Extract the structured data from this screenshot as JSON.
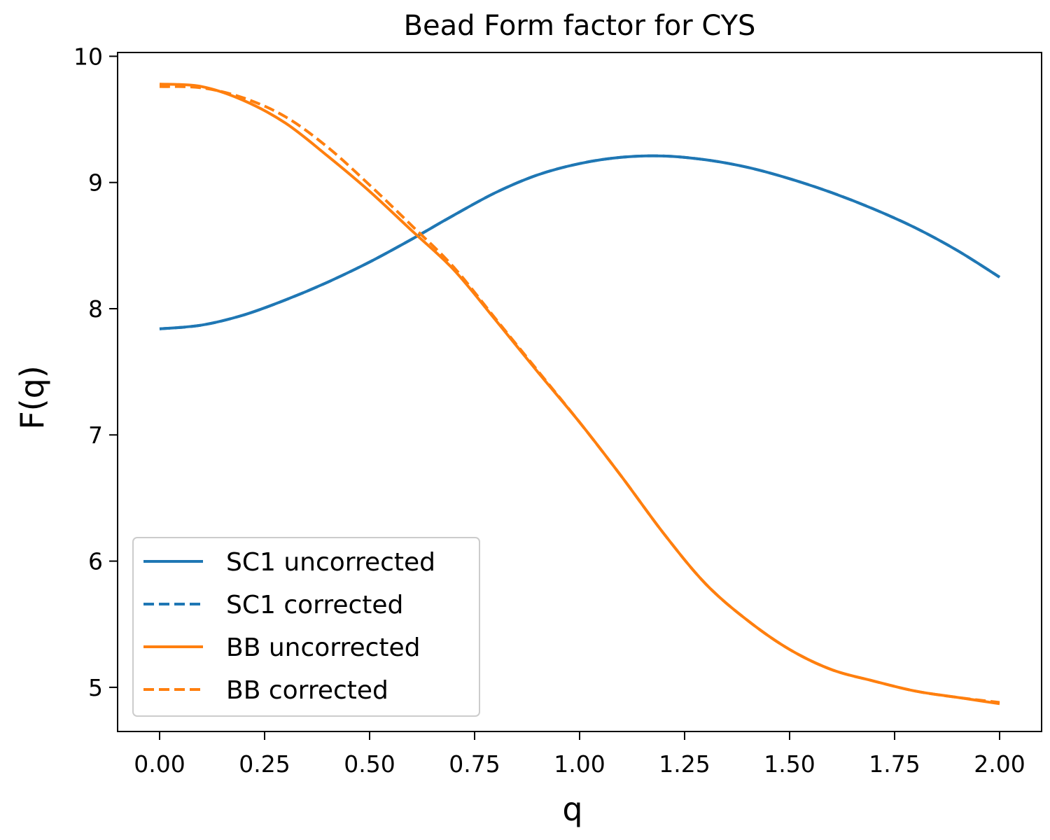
{
  "chart_data": {
    "type": "line",
    "title": "Bead Form factor for CYS",
    "xlabel": "q",
    "ylabel": "F(q)",
    "xlim": [
      -0.1,
      2.1
    ],
    "ylim": [
      4.65,
      10.03
    ],
    "xticks": [
      "0.00",
      "0.25",
      "0.50",
      "0.75",
      "1.00",
      "1.25",
      "1.50",
      "1.75",
      "2.00"
    ],
    "xtick_values": [
      0,
      0.25,
      0.5,
      0.75,
      1.0,
      1.25,
      1.5,
      1.75,
      2.0
    ],
    "yticks": [
      "5",
      "6",
      "7",
      "8",
      "9",
      "10"
    ],
    "ytick_values": [
      5,
      6,
      7,
      8,
      9,
      10
    ],
    "grid": false,
    "legend_position": "lower-left",
    "x": [
      0,
      0.1,
      0.2,
      0.3,
      0.4,
      0.5,
      0.6,
      0.7,
      0.8,
      0.9,
      1.0,
      1.1,
      1.2,
      1.3,
      1.4,
      1.5,
      1.6,
      1.7,
      1.8,
      1.9,
      2.0
    ],
    "series": [
      {
        "name": "SC1 uncorrected",
        "color": "#1f77b4",
        "dash": "solid",
        "values": [
          7.84,
          7.87,
          7.95,
          8.07,
          8.21,
          8.37,
          8.55,
          8.74,
          8.92,
          9.06,
          9.15,
          9.2,
          9.21,
          9.18,
          9.12,
          9.03,
          8.92,
          8.79,
          8.64,
          8.46,
          8.25
        ]
      },
      {
        "name": "SC1 corrected",
        "color": "#1f77b4",
        "dash": "dashed",
        "values": [
          7.84,
          7.87,
          7.95,
          8.07,
          8.21,
          8.37,
          8.55,
          8.74,
          8.92,
          9.06,
          9.15,
          9.2,
          9.21,
          9.18,
          9.12,
          9.03,
          8.92,
          8.79,
          8.64,
          8.46,
          8.25
        ]
      },
      {
        "name": "BB uncorrected",
        "color": "#ff7f0e",
        "dash": "solid",
        "values": [
          9.78,
          9.76,
          9.65,
          9.47,
          9.21,
          8.93,
          8.62,
          8.31,
          7.91,
          7.5,
          7.1,
          6.67,
          6.22,
          5.82,
          5.53,
          5.3,
          5.14,
          5.05,
          4.97,
          4.92,
          4.87
        ]
      },
      {
        "name": "BB corrected",
        "color": "#ff7f0e",
        "dash": "dashed",
        "values": [
          9.76,
          9.75,
          9.67,
          9.52,
          9.28,
          8.98,
          8.66,
          8.33,
          7.92,
          7.51,
          7.1,
          6.67,
          6.22,
          5.82,
          5.53,
          5.3,
          5.14,
          5.05,
          4.97,
          4.92,
          4.88
        ]
      }
    ]
  }
}
